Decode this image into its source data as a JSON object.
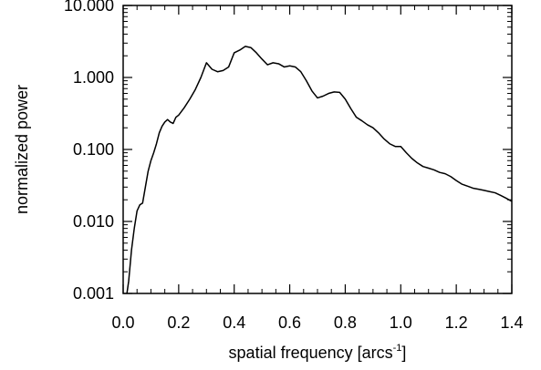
{
  "chart_data": {
    "type": "line",
    "title": "",
    "xlabel": {
      "text": "spatial frequency [arcs",
      "superscript": "-1",
      "suffix": "]"
    },
    "ylabel": "normalized power",
    "xlim": [
      0.0,
      1.4
    ],
    "ylim": [
      0.001,
      10.0
    ],
    "yscale": "log",
    "grid": false,
    "legend": "none",
    "line_color": "#000000",
    "x_ticks": [
      {
        "value": 0.0,
        "label": "0.0"
      },
      {
        "value": 0.2,
        "label": "0.2"
      },
      {
        "value": 0.4,
        "label": "0.4"
      },
      {
        "value": 0.6,
        "label": "0.6"
      },
      {
        "value": 0.8,
        "label": "0.8"
      },
      {
        "value": 1.0,
        "label": "1.0"
      },
      {
        "value": 1.2,
        "label": "1.2"
      },
      {
        "value": 1.4,
        "label": "1.4"
      }
    ],
    "y_ticks": [
      {
        "value": 0.001,
        "label": "0.001"
      },
      {
        "value": 0.01,
        "label": "0.010"
      },
      {
        "value": 0.1,
        "label": "0.100"
      },
      {
        "value": 1.0,
        "label": "1.000"
      },
      {
        "value": 10.0,
        "label": "10.000"
      }
    ],
    "series": [
      {
        "x": [
          0.01,
          0.02,
          0.03,
          0.04,
          0.05,
          0.06,
          0.07,
          0.08,
          0.09,
          0.1,
          0.11,
          0.12,
          0.13,
          0.14,
          0.15,
          0.16,
          0.17,
          0.18,
          0.19,
          0.2,
          0.22,
          0.24,
          0.26,
          0.28,
          0.3,
          0.32,
          0.34,
          0.36,
          0.38,
          0.4,
          0.42,
          0.44,
          0.46,
          0.48,
          0.5,
          0.52,
          0.54,
          0.56,
          0.58,
          0.6,
          0.62,
          0.64,
          0.66,
          0.68,
          0.7,
          0.72,
          0.74,
          0.76,
          0.78,
          0.8,
          0.82,
          0.84,
          0.86,
          0.88,
          0.9,
          0.92,
          0.94,
          0.96,
          0.98,
          1.0,
          1.02,
          1.04,
          1.06,
          1.08,
          1.1,
          1.12,
          1.14,
          1.16,
          1.18,
          1.2,
          1.22,
          1.24,
          1.26,
          1.28,
          1.3,
          1.32,
          1.34,
          1.36,
          1.38,
          1.4
        ],
        "values": [
          0.0008,
          0.0015,
          0.004,
          0.008,
          0.014,
          0.017,
          0.018,
          0.03,
          0.05,
          0.07,
          0.09,
          0.12,
          0.17,
          0.21,
          0.24,
          0.26,
          0.24,
          0.23,
          0.28,
          0.3,
          0.38,
          0.5,
          0.68,
          1.0,
          1.6,
          1.3,
          1.2,
          1.25,
          1.4,
          2.2,
          2.4,
          2.7,
          2.6,
          2.2,
          1.8,
          1.5,
          1.6,
          1.55,
          1.4,
          1.45,
          1.4,
          1.2,
          0.9,
          0.65,
          0.52,
          0.55,
          0.6,
          0.63,
          0.62,
          0.5,
          0.37,
          0.28,
          0.25,
          0.22,
          0.2,
          0.17,
          0.14,
          0.12,
          0.11,
          0.11,
          0.09,
          0.075,
          0.065,
          0.058,
          0.055,
          0.052,
          0.048,
          0.046,
          0.042,
          0.037,
          0.033,
          0.031,
          0.029,
          0.028,
          0.027,
          0.026,
          0.025,
          0.023,
          0.021,
          0.019
        ]
      }
    ]
  }
}
